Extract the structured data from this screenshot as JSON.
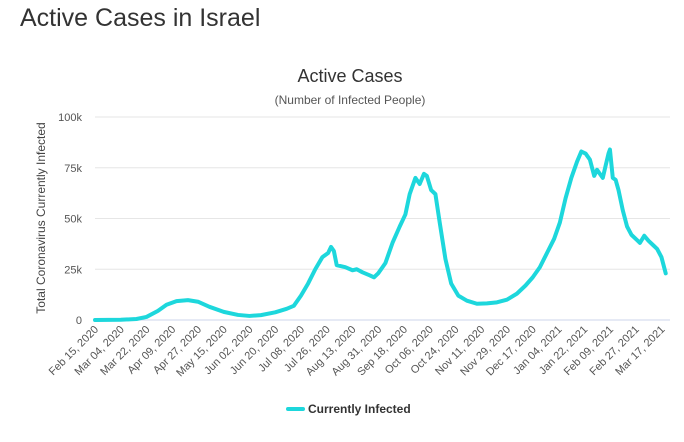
{
  "page": {
    "heading": "Active Cases in Israel"
  },
  "chart_data": {
    "type": "line",
    "title": "Active Cases",
    "subtitle": "(Number of Infected People)",
    "xlabel": "",
    "ylabel": "Total Coronavirus Currently Infected",
    "ylim": [
      0,
      100000
    ],
    "yticks": [
      0,
      25000,
      50000,
      75000,
      100000
    ],
    "ytick_labels": [
      "0",
      "25k",
      "50k",
      "75k",
      "100k"
    ],
    "xlim": [
      "2020-02-15",
      "2021-03-23"
    ],
    "xtick_labels": [
      "Feb 15, 2020",
      "Mar 04, 2020",
      "Mar 22, 2020",
      "Apr 09, 2020",
      "Apr 27, 2020",
      "May 15, 2020",
      "Jun 02, 2020",
      "Jun 20, 2020",
      "Jul 08, 2020",
      "Jul 26, 2020",
      "Aug 13, 2020",
      "Aug 31, 2020",
      "Sep 18, 2020",
      "Oct 06, 2020",
      "Oct 24, 2020",
      "Nov 11, 2020",
      "Nov 29, 2020",
      "Dec 17, 2020",
      "Jan 04, 2021",
      "Jan 22, 2021",
      "Feb 09, 2021",
      "Feb 27, 2021",
      "Mar 17, 2021"
    ],
    "grid": true,
    "legend_position": "bottom",
    "series": [
      {
        "name": "Currently Infected",
        "color": "#1dd7dc",
        "points": [
          [
            "2020-02-15",
            0
          ],
          [
            "2020-03-04",
            100
          ],
          [
            "2020-03-15",
            500
          ],
          [
            "2020-03-22",
            1500
          ],
          [
            "2020-03-30",
            4500
          ],
          [
            "2020-04-05",
            7500
          ],
          [
            "2020-04-12",
            9300
          ],
          [
            "2020-04-20",
            9800
          ],
          [
            "2020-04-27",
            9000
          ],
          [
            "2020-05-05",
            6500
          ],
          [
            "2020-05-15",
            4000
          ],
          [
            "2020-05-25",
            2500
          ],
          [
            "2020-06-02",
            2000
          ],
          [
            "2020-06-10",
            2400
          ],
          [
            "2020-06-20",
            3800
          ],
          [
            "2020-06-28",
            5500
          ],
          [
            "2020-07-03",
            7000
          ],
          [
            "2020-07-08",
            12000
          ],
          [
            "2020-07-13",
            18000
          ],
          [
            "2020-07-18",
            25000
          ],
          [
            "2020-07-23",
            31000
          ],
          [
            "2020-07-27",
            33000
          ],
          [
            "2020-07-29",
            36000
          ],
          [
            "2020-07-31",
            34000
          ],
          [
            "2020-08-02",
            27000
          ],
          [
            "2020-08-08",
            26000
          ],
          [
            "2020-08-13",
            24500
          ],
          [
            "2020-08-16",
            25000
          ],
          [
            "2020-08-20",
            23500
          ],
          [
            "2020-08-25",
            22000
          ],
          [
            "2020-08-28",
            21000
          ],
          [
            "2020-08-31",
            23000
          ],
          [
            "2020-09-05",
            28000
          ],
          [
            "2020-09-10",
            38000
          ],
          [
            "2020-09-15",
            46000
          ],
          [
            "2020-09-19",
            52000
          ],
          [
            "2020-09-22",
            62000
          ],
          [
            "2020-09-26",
            70000
          ],
          [
            "2020-09-29",
            67000
          ],
          [
            "2020-10-02",
            72000
          ],
          [
            "2020-10-04",
            71000
          ],
          [
            "2020-10-07",
            64000
          ],
          [
            "2020-10-10",
            62000
          ],
          [
            "2020-10-13",
            48000
          ],
          [
            "2020-10-17",
            30000
          ],
          [
            "2020-10-21",
            18000
          ],
          [
            "2020-10-26",
            12000
          ],
          [
            "2020-11-01",
            9500
          ],
          [
            "2020-11-08",
            8000
          ],
          [
            "2020-11-15",
            8200
          ],
          [
            "2020-11-22",
            8700
          ],
          [
            "2020-11-29",
            10000
          ],
          [
            "2020-12-06",
            13000
          ],
          [
            "2020-12-12",
            17000
          ],
          [
            "2020-12-17",
            21000
          ],
          [
            "2020-12-22",
            26000
          ],
          [
            "2020-12-27",
            33000
          ],
          [
            "2021-01-01",
            40000
          ],
          [
            "2021-01-05",
            48000
          ],
          [
            "2021-01-09",
            60000
          ],
          [
            "2021-01-13",
            70000
          ],
          [
            "2021-01-17",
            78000
          ],
          [
            "2021-01-20",
            83000
          ],
          [
            "2021-01-23",
            82000
          ],
          [
            "2021-01-26",
            79000
          ],
          [
            "2021-01-29",
            71000
          ],
          [
            "2021-01-31",
            74000
          ],
          [
            "2021-02-02",
            72000
          ],
          [
            "2021-02-04",
            70000
          ],
          [
            "2021-02-06",
            76000
          ],
          [
            "2021-02-08",
            82000
          ],
          [
            "2021-02-09",
            84000
          ],
          [
            "2021-02-11",
            70000
          ],
          [
            "2021-02-13",
            69000
          ],
          [
            "2021-02-15",
            64000
          ],
          [
            "2021-02-18",
            54000
          ],
          [
            "2021-02-21",
            46000
          ],
          [
            "2021-02-24",
            42000
          ],
          [
            "2021-02-27",
            40000
          ],
          [
            "2021-03-02",
            38000
          ],
          [
            "2021-03-05",
            41500
          ],
          [
            "2021-03-08",
            39000
          ],
          [
            "2021-03-11",
            37000
          ],
          [
            "2021-03-14",
            35000
          ],
          [
            "2021-03-17",
            31000
          ],
          [
            "2021-03-20",
            23000
          ]
        ]
      }
    ]
  }
}
